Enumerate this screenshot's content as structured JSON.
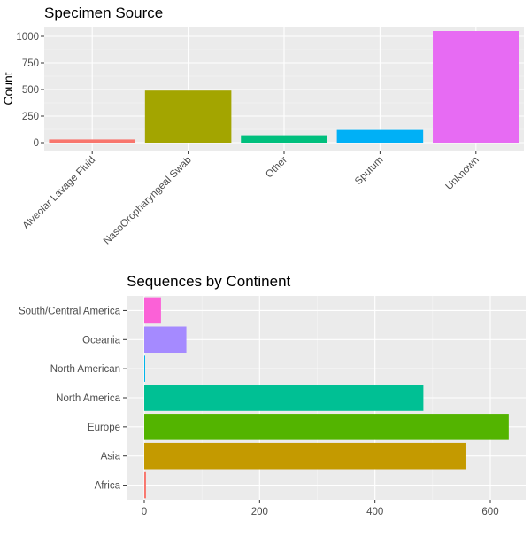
{
  "chart_data": [
    {
      "type": "bar",
      "title": "Specimen Source",
      "xlabel": "",
      "ylabel": "Count",
      "categories": [
        "Alveolar Lavage Fluid",
        "NasoOropharyngeal Swab",
        "Other",
        "Sputum",
        "Unknown"
      ],
      "values": [
        30,
        490,
        70,
        120,
        1050
      ],
      "colors": [
        "#F8766D",
        "#A3A500",
        "#00BF7D",
        "#00B0F6",
        "#E76BF3"
      ],
      "ylim": [
        0,
        1100
      ],
      "yticks": [
        0,
        250,
        500,
        750,
        1000
      ],
      "grid": true,
      "orientation": "vertical"
    },
    {
      "type": "bar",
      "title": "Sequences by Continent",
      "xlabel": "",
      "ylabel": "",
      "categories": [
        "Africa",
        "Asia",
        "Europe",
        "North America",
        "North American",
        "Oceania",
        "South/Central America"
      ],
      "values": [
        3,
        557,
        632,
        484,
        1,
        73,
        29
      ],
      "colors": [
        "#F8766D",
        "#C49A00",
        "#53B400",
        "#00C094",
        "#00B6EB",
        "#A58AFF",
        "#FB61D7"
      ],
      "xlim": [
        0,
        650
      ],
      "xticks": [
        0,
        200,
        400,
        600
      ],
      "grid": true,
      "orientation": "horizontal"
    }
  ]
}
